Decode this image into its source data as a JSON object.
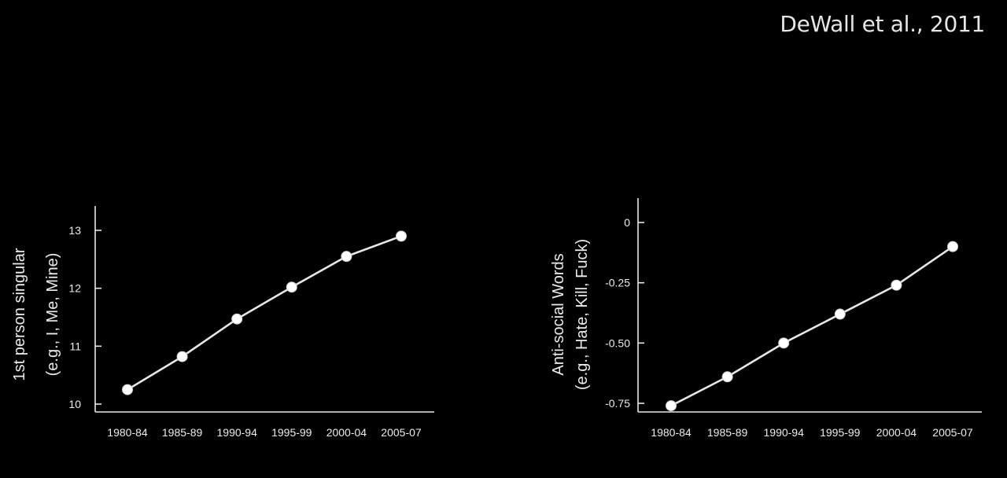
{
  "citation": "DeWall et al., 2011",
  "chart_data": [
    {
      "type": "line",
      "title": "",
      "xlabel": "",
      "ylabel_line1": "1st person singular",
      "ylabel_line2": "(e.g., I, Me, Mine)",
      "categories": [
        "1980-84",
        "1985-89",
        "1990-94",
        "1995-99",
        "2000-04",
        "2005-07"
      ],
      "yticks": [
        10,
        11,
        12,
        13
      ],
      "ytick_labels": [
        "10",
        "11",
        "12",
        "13"
      ],
      "ylim": [
        9.9,
        13.3
      ],
      "values": [
        10.25,
        10.82,
        11.47,
        12.02,
        12.55,
        12.9
      ],
      "grid": false,
      "legend": "none"
    },
    {
      "type": "line",
      "title": "",
      "xlabel": "",
      "ylabel_line1": "Anti-social Words",
      "ylabel_line2": "(e.g., Hate, Kill, Fuck)",
      "categories": [
        "1980-84",
        "1985-89",
        "1990-94",
        "1995-99",
        "2000-04",
        "2005-07"
      ],
      "yticks": [
        0,
        -0.25,
        -0.5,
        -0.75
      ],
      "ytick_labels": [
        "0",
        "-0.25",
        "-0.50",
        "-0.75"
      ],
      "ylim": [
        -0.79,
        0.1
      ],
      "values": [
        -0.76,
        -0.64,
        -0.5,
        -0.38,
        -0.26,
        -0.1
      ],
      "grid": false,
      "legend": "none"
    }
  ]
}
